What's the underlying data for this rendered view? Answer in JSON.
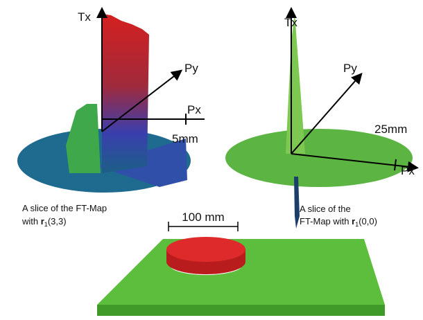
{
  "left_panel": {
    "axes": {
      "tx": "Tx",
      "py": "Py",
      "px": "Px"
    },
    "scale": "5mm",
    "caption": {
      "line1": "A slice of the FT-Map",
      "prefix": "with ",
      "symbol": "r",
      "subscript": "1",
      "suffix": "(3,3)"
    }
  },
  "right_panel": {
    "axes": {
      "tx": "Tx",
      "py": "Py",
      "px": "Px"
    },
    "scale": "25mm",
    "caption": {
      "line1": "A slice of the",
      "prefix": "FT-Map with ",
      "symbol": "r",
      "subscript": "1",
      "suffix": "(0,0)"
    }
  },
  "bottom_panel": {
    "dimension": "100 mm"
  }
}
